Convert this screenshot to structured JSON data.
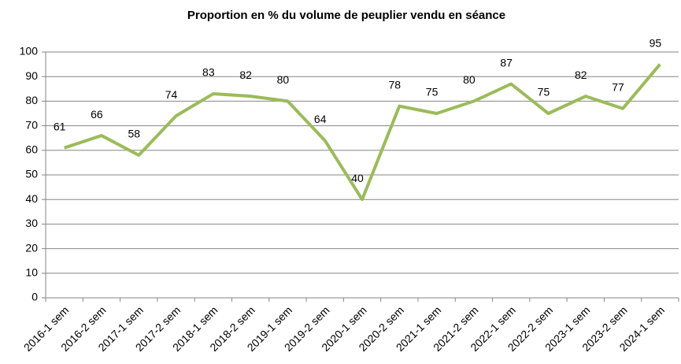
{
  "chart_data": {
    "type": "line",
    "title": "Proportion en % du volume de peuplier vendu en séance",
    "categories": [
      "2016-1 sem",
      "2016-2 sem",
      "2017-1 sem",
      "2017-2 sem",
      "2018-1 sem",
      "2018-2 sem",
      "2019-1 sem",
      "2019-2 sem",
      "2020-1 sem",
      "2020-2 sem",
      "2021-1 sem",
      "2021-2 sem",
      "2022-1 sem",
      "2022-2 sem",
      "2023-1 sem",
      "2023-2 sem",
      "2024-1 sem"
    ],
    "values": [
      61,
      66,
      58,
      74,
      83,
      82,
      80,
      64,
      40,
      78,
      75,
      80,
      87,
      75,
      82,
      77,
      95
    ],
    "color": "#9bbb59",
    "ylim": [
      0,
      100
    ],
    "yticks": [
      0,
      10,
      20,
      30,
      40,
      50,
      60,
      70,
      80,
      90,
      100
    ],
    "grid": true
  }
}
